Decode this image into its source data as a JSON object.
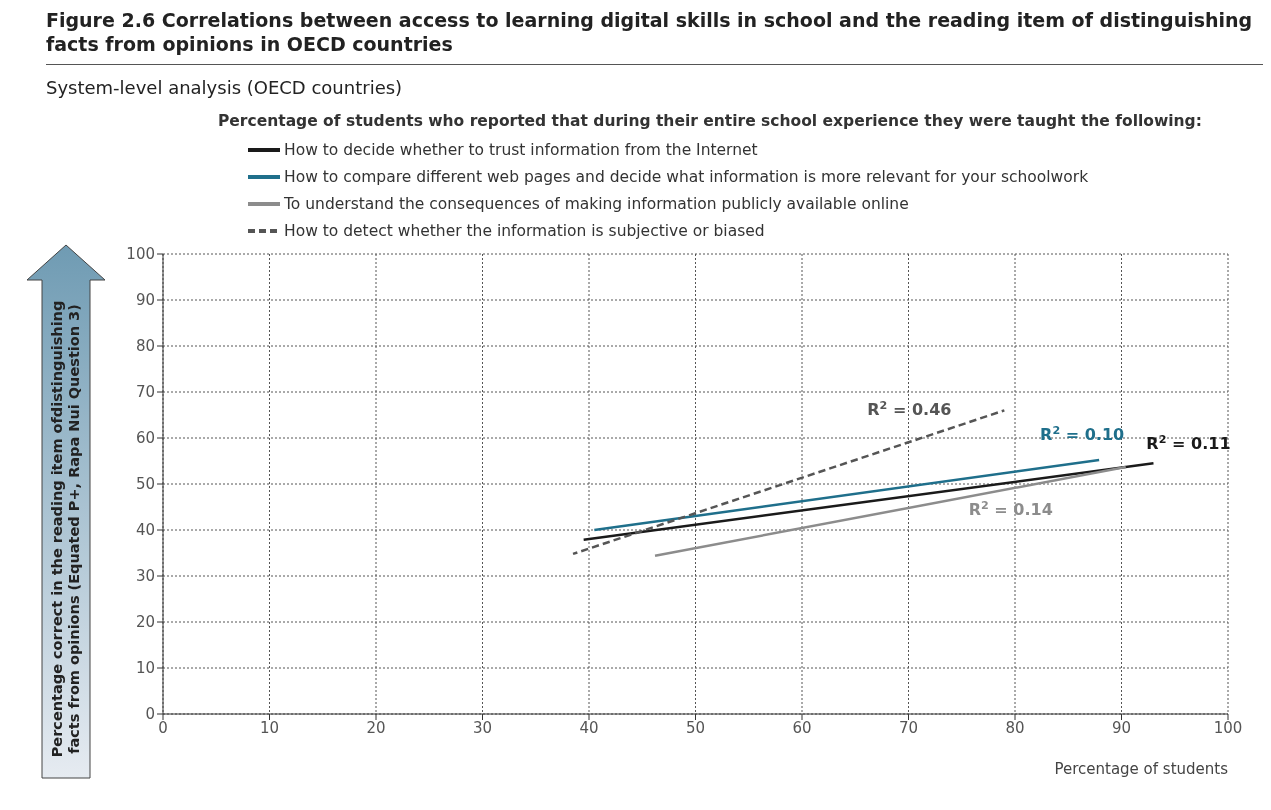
{
  "chart_data": {
    "type": "line",
    "title": "Figure 2.6 Correlations between access to learning digital skills in school and the reading item of distinguishing facts from opinions in OECD countries",
    "subtitle": "System-level analysis (OECD countries)",
    "legend_title": "Percentage of students who reported that during their entire school experience they were taught the following:",
    "xlabel": "Percentage of students",
    "ylabel": "Percentage correct in the reading item ofdistinguishing facts from opinions (Equated P+, Rapa Nui Question 3)",
    "series": [
      {
        "name": "How to decide whether to trust information from the Internet",
        "color": "#1a1a1a",
        "x": [
          39.5,
          93
        ],
        "values": [
          37.9,
          54.5
        ]
      },
      {
        "name": "How to compare different web pages and decide what information is more relevant for your schoolwork",
        "color": "#1f6f8b",
        "x": [
          40.5,
          87.9
        ],
        "values": [
          40,
          55.2
        ]
      },
      {
        "name": "To understand the consequences of making information publicly available online",
        "color": "#8c8c8c",
        "x": [
          46.2,
          90.4
        ],
        "values": [
          34.4,
          53.7
        ]
      },
      {
        "name": "How to detect whether the information is subjective or biased",
        "color": "#555555",
        "line_style": "dashed",
        "x": [
          38.5,
          79
        ],
        "values": [
          34.8,
          66
        ]
      }
    ],
    "annotations": [
      "R$^{2}$ = 0.11",
      "R$^{2}$ = 0.10",
      "R$^{2}$ = 0.14",
      "R$^{2}$ = 0.46"
    ],
    "xlim": [
      0,
      100
    ],
    "xticks": [
      0,
      10,
      20,
      30,
      40,
      50,
      60,
      70,
      80,
      90,
      100
    ],
    "ylim": [
      0,
      100
    ],
    "yticks": [
      0,
      10,
      20,
      30,
      40,
      50,
      60,
      70,
      80,
      90,
      100
    ],
    "grid": true,
    "legend": "top",
    "marker": "none",
    "line_style": "solid"
  }
}
